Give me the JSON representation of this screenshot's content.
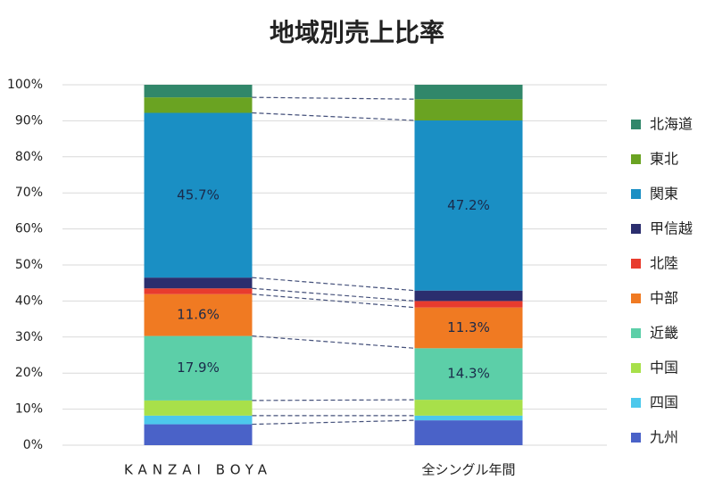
{
  "chart_data": {
    "type": "stacked_bar_100",
    "title": "地域別売上比率",
    "categories": [
      "KANZAI BOYA",
      "全シングル年間"
    ],
    "ylim": [
      0,
      100
    ],
    "yticks": [
      {
        "value": 0,
        "label": "0%"
      },
      {
        "value": 10,
        "label": "10%"
      },
      {
        "value": 20,
        "label": "20%"
      },
      {
        "value": 30,
        "label": "30%"
      },
      {
        "value": 40,
        "label": "40%"
      },
      {
        "value": 50,
        "label": "50%"
      },
      {
        "value": 60,
        "label": "60%"
      },
      {
        "value": 70,
        "label": "70%"
      },
      {
        "value": 80,
        "label": "80%"
      },
      {
        "value": 90,
        "label": "90%"
      },
      {
        "value": 100,
        "label": "100%"
      }
    ],
    "grid": true,
    "legend": "right",
    "series": [
      {
        "name": "九州",
        "color": "#4a62c8",
        "values": [
          5.8,
          6.9
        ]
      },
      {
        "name": "四国",
        "color": "#4cc8ec",
        "values": [
          2.4,
          1.3
        ]
      },
      {
        "name": "中国",
        "color": "#a8e04a",
        "values": [
          4.2,
          4.4
        ]
      },
      {
        "name": "近畿",
        "color": "#5ccfa8",
        "values": [
          17.9,
          14.3
        ],
        "value_labels": [
          "17.9%",
          "14.3%"
        ]
      },
      {
        "name": "中部",
        "color": "#f07a22",
        "values": [
          11.6,
          11.3
        ],
        "value_labels": [
          "11.6%",
          "11.3%"
        ]
      },
      {
        "name": "北陸",
        "color": "#e83c2e",
        "values": [
          1.6,
          1.8
        ]
      },
      {
        "name": "甲信越",
        "color": "#2b2e6e",
        "values": [
          3.0,
          2.9
        ]
      },
      {
        "name": "関東",
        "color": "#1a8fc4",
        "values": [
          45.7,
          47.2
        ],
        "value_labels": [
          "45.7%",
          "47.2%"
        ]
      },
      {
        "name": "東北",
        "color": "#6aa322",
        "values": [
          4.3,
          5.9
        ]
      },
      {
        "name": "北海道",
        "color": "#31876a",
        "values": [
          3.5,
          4.0
        ]
      }
    ]
  }
}
